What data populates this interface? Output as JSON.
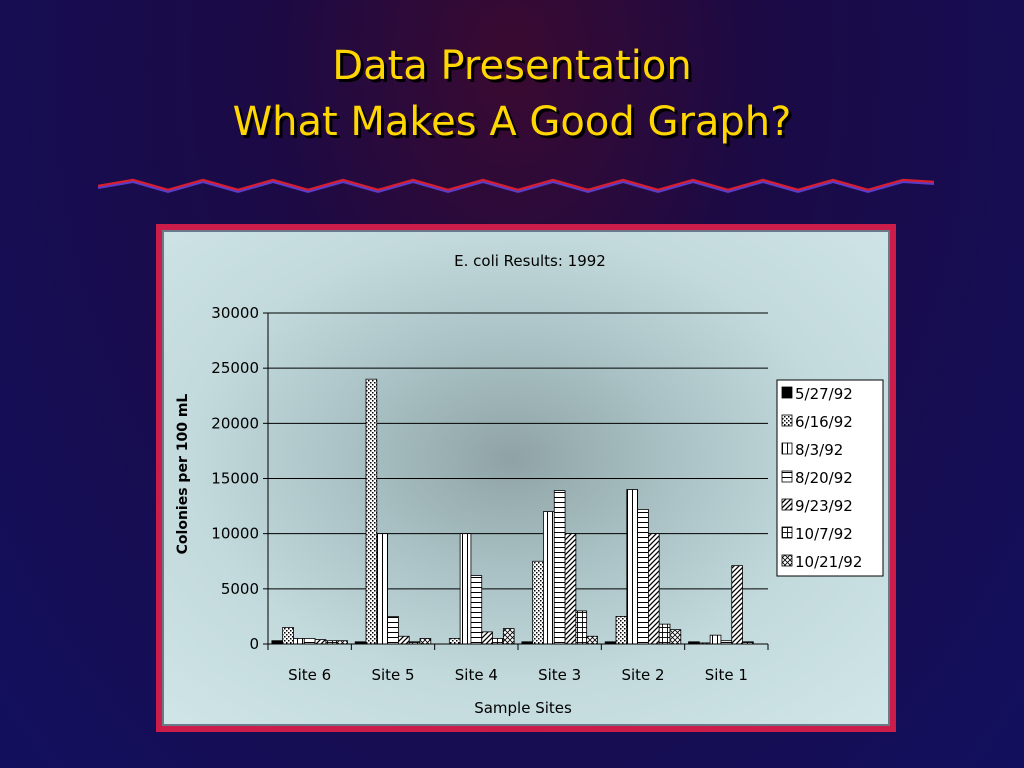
{
  "slide": {
    "title_line1": "Data Presentation",
    "title_line2": "What Makes A Good Graph?",
    "title_color": "#ffd600",
    "frame_color": "#cc1c4a"
  },
  "chart_data": {
    "type": "bar",
    "title": "E. coli Results: 1992",
    "xlabel": "Sample Sites",
    "ylabel": "Colonies per 100 mL",
    "ylim": [
      0,
      30000
    ],
    "yticks": [
      0,
      5000,
      10000,
      15000,
      20000,
      25000,
      30000
    ],
    "grid": true,
    "legend_position": "right",
    "categories": [
      "Site 6",
      "Site 5",
      "Site 4",
      "Site 3",
      "Site 2",
      "Site 1"
    ],
    "series": [
      {
        "name": "5/27/92",
        "pattern": "solid",
        "values": [
          300,
          200,
          0,
          200,
          200,
          200
        ]
      },
      {
        "name": "6/16/92",
        "pattern": "dots",
        "values": [
          1500,
          24000,
          500,
          7500,
          2500,
          100
        ]
      },
      {
        "name": "8/3/92",
        "pattern": "vertical",
        "values": [
          500,
          10000,
          10000,
          12000,
          14000,
          800
        ]
      },
      {
        "name": "8/20/92",
        "pattern": "horizontal",
        "values": [
          500,
          2500,
          6200,
          13900,
          12200,
          300
        ]
      },
      {
        "name": "9/23/92",
        "pattern": "diagonal",
        "values": [
          400,
          700,
          1100,
          10000,
          10000,
          7100
        ]
      },
      {
        "name": "10/7/92",
        "pattern": "grid",
        "values": [
          300,
          200,
          500,
          3000,
          1800,
          200
        ]
      },
      {
        "name": "10/21/92",
        "pattern": "crosshatch",
        "values": [
          300,
          500,
          1400,
          700,
          1300,
          0
        ]
      }
    ]
  }
}
